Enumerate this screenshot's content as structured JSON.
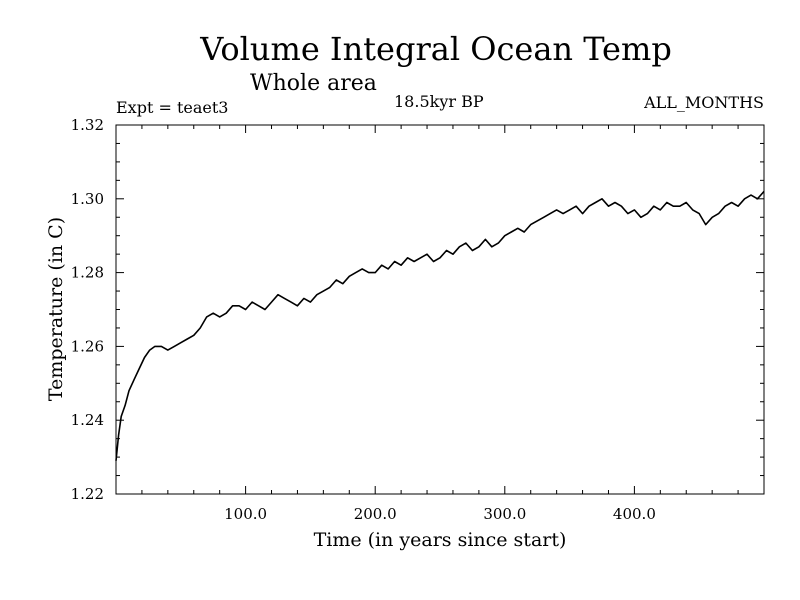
{
  "header": {
    "title": "Volume Integral Ocean Temp",
    "subtitle": "Whole area",
    "experiment": "Expt = teaet3",
    "period": "18.5kyr BP",
    "months": "ALL_MONTHS"
  },
  "colors": {
    "line": "#000000",
    "background": "#ffffff"
  },
  "chart_data": {
    "type": "line",
    "title": "Volume Integral Ocean Temp",
    "subtitle": "Whole area",
    "xlabel": "Time (in years since start)",
    "ylabel": "Temperature (in C)",
    "xlim": [
      0,
      500
    ],
    "ylim": [
      1.22,
      1.32
    ],
    "xticks": [
      100,
      200,
      300,
      400
    ],
    "xtick_labels": [
      "100.0",
      "200.0",
      "300.0",
      "400.0"
    ],
    "yticks": [
      1.22,
      1.24,
      1.26,
      1.28,
      1.3,
      1.32
    ],
    "ytick_labels": [
      "1.22",
      "1.24",
      "1.26",
      "1.28",
      "1.30",
      "1.32"
    ],
    "grid": false,
    "series": [
      {
        "name": "Volume Integral Ocean Temp",
        "x": [
          0,
          2,
          4,
          7,
          10,
          14,
          18,
          22,
          26,
          30,
          35,
          40,
          45,
          50,
          55,
          60,
          65,
          70,
          75,
          80,
          85,
          90,
          95,
          100,
          105,
          110,
          115,
          120,
          125,
          130,
          135,
          140,
          145,
          150,
          155,
          160,
          165,
          170,
          175,
          180,
          185,
          190,
          195,
          200,
          205,
          210,
          215,
          220,
          225,
          230,
          235,
          240,
          245,
          250,
          255,
          260,
          265,
          270,
          275,
          280,
          285,
          290,
          295,
          300,
          305,
          310,
          315,
          320,
          325,
          330,
          335,
          340,
          345,
          350,
          355,
          360,
          365,
          370,
          375,
          380,
          385,
          390,
          395,
          400,
          405,
          410,
          415,
          420,
          425,
          430,
          435,
          440,
          445,
          450,
          455,
          460,
          465,
          470,
          475,
          480,
          485,
          490,
          495,
          500
        ],
        "values": [
          1.229,
          1.236,
          1.241,
          1.244,
          1.248,
          1.251,
          1.254,
          1.257,
          1.259,
          1.26,
          1.26,
          1.259,
          1.26,
          1.261,
          1.262,
          1.263,
          1.265,
          1.268,
          1.269,
          1.268,
          1.269,
          1.271,
          1.271,
          1.27,
          1.272,
          1.271,
          1.27,
          1.272,
          1.274,
          1.273,
          1.272,
          1.271,
          1.273,
          1.272,
          1.274,
          1.275,
          1.276,
          1.278,
          1.277,
          1.279,
          1.28,
          1.281,
          1.28,
          1.28,
          1.282,
          1.281,
          1.283,
          1.282,
          1.284,
          1.283,
          1.284,
          1.285,
          1.283,
          1.284,
          1.286,
          1.285,
          1.287,
          1.288,
          1.286,
          1.287,
          1.289,
          1.287,
          1.288,
          1.29,
          1.291,
          1.292,
          1.291,
          1.293,
          1.294,
          1.295,
          1.296,
          1.297,
          1.296,
          1.297,
          1.298,
          1.296,
          1.298,
          1.299,
          1.3,
          1.298,
          1.299,
          1.298,
          1.296,
          1.297,
          1.295,
          1.296,
          1.298,
          1.297,
          1.299,
          1.298,
          1.298,
          1.299,
          1.297,
          1.296,
          1.293,
          1.295,
          1.296,
          1.298,
          1.299,
          1.298,
          1.3,
          1.301,
          1.3,
          1.302
        ]
      }
    ]
  }
}
